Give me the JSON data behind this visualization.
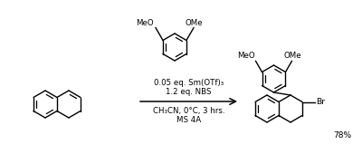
{
  "background_color": "#ffffff",
  "text_color": "#000000",
  "cond1": "0.05 eq. Sm(OTf)₃",
  "cond2": "1.2 eq. NBS",
  "cond3": "CH₃CN, 0°C, 3 hrs.",
  "cond4": "MS 4A",
  "yield_text": "78%",
  "ome_label": "OMe",
  "meo_label": "MeO",
  "br_label": "Br",
  "figsize": [
    4.0,
    1.7
  ],
  "dpi": 100,
  "lw": 1.0,
  "r": 15,
  "fs": 6.2
}
